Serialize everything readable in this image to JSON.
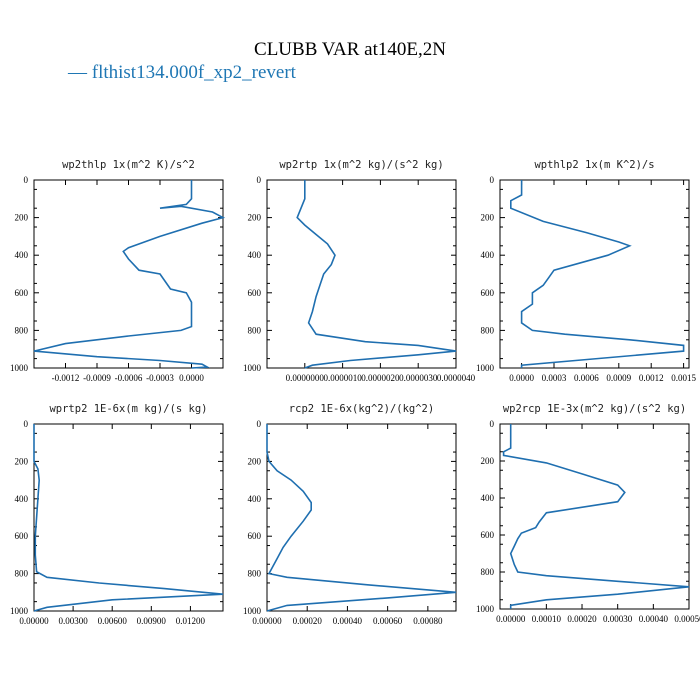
{
  "figure": {
    "title": "CLUBB VAR at140E,2N",
    "legend_label": "— flthist134.000f_xp2_revert",
    "line_color": "#1f6fb0"
  },
  "chart_data": [
    {
      "type": "line",
      "title": "wp2thlp  1x(m^2 K)/s^2",
      "xlim": [
        -0.0015,
        0.0003
      ],
      "ylim": [
        1000,
        0
      ],
      "xticks": [
        -0.0012,
        -0.0009,
        -0.0006,
        -0.0003,
        0.0
      ],
      "xtick_labels": [
        "-0.0012",
        "-0.0009",
        "-0.0006",
        "-0.0003",
        "0.0000"
      ],
      "yticks": [
        0,
        200,
        400,
        600,
        800,
        1000
      ],
      "series": [
        {
          "x": [
            0.0,
            0.0,
            -5e-05,
            -0.0003,
            -0.0001,
            0.0002,
            0.0003,
            0.0001,
            -0.0003,
            -0.0006,
            -0.00065,
            -0.0006,
            -0.0005,
            -0.0003,
            -0.0002,
            -5e-05,
            0.0,
            0.0,
            0.0,
            -0.0001,
            -0.0006,
            -0.0012,
            -0.0015,
            -0.0009,
            -0.0003,
            0.0001,
            0.00015,
            0.0
          ],
          "y": [
            0,
            100,
            130,
            150,
            140,
            170,
            200,
            230,
            300,
            360,
            380,
            420,
            480,
            500,
            580,
            600,
            650,
            700,
            780,
            800,
            830,
            870,
            910,
            940,
            960,
            980,
            995,
            1000
          ]
        }
      ]
    },
    {
      "type": "line",
      "title": "wp2rtp  1x(m^2 kg)/(s^2 kg)",
      "xlim": [
        -1e-06,
        4e-06
      ],
      "ylim": [
        1000,
        0
      ],
      "xticks": [
        0.0,
        1e-06,
        2e-06,
        3e-06,
        4e-06
      ],
      "xtick_labels": [
        "0.0000000",
        "0.0000010",
        "0.0000020",
        "0.0000030",
        "0.0000040"
      ],
      "yticks": [
        0,
        200,
        400,
        600,
        800,
        1000
      ],
      "series": [
        {
          "x": [
            0.0,
            0.0,
            -2e-07,
            0.0,
            3e-07,
            6e-07,
            8e-07,
            7e-07,
            5e-07,
            4e-07,
            3e-07,
            2e-07,
            1e-07,
            3e-07,
            1.6e-06,
            3e-06,
            4e-06,
            3e-06,
            1.2e-06,
            2e-07,
            0.0
          ],
          "y": [
            0,
            100,
            200,
            240,
            290,
            340,
            400,
            450,
            500,
            560,
            620,
            700,
            760,
            820,
            860,
            880,
            910,
            930,
            960,
            985,
            1000
          ]
        }
      ]
    },
    {
      "type": "line",
      "title": "wpthlp2  1x(m K^2)/s",
      "xlim": [
        -0.0002,
        0.00155
      ],
      "ylim": [
        1000,
        0
      ],
      "xticks": [
        0.0,
        0.0003,
        0.0006,
        0.0009,
        0.0012,
        0.0015
      ],
      "xtick_labels": [
        "0.0000",
        "0.0003",
        "0.0006",
        "0.0009",
        "0.0012",
        "0.0015"
      ],
      "yticks": [
        0,
        200,
        400,
        600,
        800,
        1000
      ],
      "series": [
        {
          "x": [
            0.0,
            0.0,
            -0.0001,
            -0.0001,
            0.0002,
            0.0006,
            0.0009,
            0.001,
            0.0008,
            0.0003,
            0.00025,
            0.0002,
            0.0001,
            0.0001,
            0.0,
            0.0,
            0.0001,
            0.0004,
            0.001,
            0.0015,
            0.0015,
            0.0005,
            0.0,
            0.0
          ],
          "y": [
            0,
            80,
            110,
            150,
            220,
            280,
            330,
            350,
            400,
            480,
            520,
            560,
            600,
            660,
            700,
            760,
            800,
            820,
            850,
            880,
            910,
            960,
            985,
            1000
          ]
        }
      ]
    },
    {
      "type": "line",
      "title": "wprtp2  1E-6x(m kg)/(s kg)",
      "xlim": [
        0.0,
        0.0145
      ],
      "ylim": [
        1000,
        0
      ],
      "xticks": [
        0.0,
        0.003,
        0.006,
        0.009,
        0.012
      ],
      "xtick_labels": [
        "0.00000",
        "0.00300",
        "0.00600",
        "0.00900",
        "0.01200"
      ],
      "yticks": [
        0,
        200,
        400,
        600,
        800,
        1000
      ],
      "series": [
        {
          "x": [
            0.0,
            0.0,
            0.0003,
            0.0004,
            0.0003,
            0.0002,
            0.0001,
            0.0001,
            0.0002,
            0.001,
            0.005,
            0.01,
            0.0145,
            0.006,
            0.001,
            0.0
          ],
          "y": [
            0,
            200,
            240,
            300,
            400,
            500,
            600,
            700,
            790,
            820,
            850,
            880,
            910,
            940,
            980,
            1000
          ]
        }
      ]
    },
    {
      "type": "line",
      "title": "rcp2  1E-6x(kg^2)/(kg^2)",
      "xlim": [
        0.0,
        0.00094
      ],
      "ylim": [
        1000,
        0
      ],
      "xticks": [
        0.0,
        0.0002,
        0.0004,
        0.0006,
        0.0008
      ],
      "xtick_labels": [
        "0.00000",
        "0.00020",
        "0.00040",
        "0.00060",
        "0.00080"
      ],
      "yticks": [
        0,
        200,
        400,
        600,
        800,
        1000
      ],
      "series": [
        {
          "x": [
            0.0,
            0.0,
            1e-05,
            5e-05,
            0.00012,
            0.00018,
            0.00022,
            0.00022,
            0.00018,
            0.00012,
            8e-05,
            5e-05,
            2e-05,
            1e-05,
            0.0001,
            0.0005,
            0.00094,
            0.0006,
            0.0001,
            0.0
          ],
          "y": [
            0,
            150,
            200,
            250,
            300,
            360,
            420,
            460,
            520,
            600,
            660,
            720,
            780,
            800,
            820,
            860,
            900,
            930,
            970,
            1000
          ]
        }
      ]
    },
    {
      "type": "line",
      "title": "wp2rcp  1E-3x(m^2 kg)/(s^2 kg)",
      "xlim": [
        -3e-05,
        0.0005
      ],
      "ylim": [
        1000,
        0
      ],
      "xticks": [
        0.0,
        0.0001,
        0.0002,
        0.0003,
        0.0004,
        0.0005
      ],
      "xtick_labels": [
        "0.00000",
        "0.00010",
        "0.00020",
        "0.00030",
        "0.00040",
        "0.00050"
      ],
      "yticks": [
        0,
        200,
        400,
        600,
        800,
        1000
      ],
      "series": [
        {
          "x": [
            0.0,
            0.0,
            -2e-05,
            -2e-05,
            0.0001,
            0.0002,
            0.0003,
            0.00032,
            0.0003,
            0.0001,
            8e-05,
            7e-05,
            3e-05,
            2e-05,
            1e-05,
            0.0,
            1e-05,
            2e-05,
            0.0001,
            0.0003,
            0.0005,
            0.0003,
            0.0001,
            0.0,
            0.0
          ],
          "y": [
            0,
            130,
            150,
            170,
            210,
            270,
            330,
            370,
            420,
            480,
            530,
            560,
            590,
            620,
            660,
            700,
            760,
            800,
            820,
            850,
            880,
            920,
            950,
            980,
            1000
          ]
        }
      ]
    }
  ]
}
